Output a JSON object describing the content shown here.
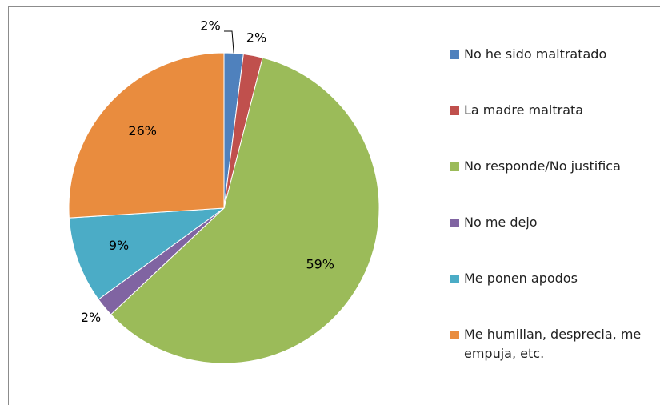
{
  "chart_data": {
    "type": "pie",
    "categories": [
      "No he sido maltratado",
      "La madre maltrata",
      "No responde/No justifica",
      "No me dejo",
      "Me ponen apodos",
      "Me humillan, desprecia, me empuja, etc."
    ],
    "values": [
      2,
      2,
      59,
      2,
      9,
      26
    ],
    "value_labels": [
      "2%",
      "2%",
      "59%",
      "2%",
      "9%",
      "26%"
    ],
    "colors": [
      "#4f81bd",
      "#c0504d",
      "#9bbb59",
      "#8064a2",
      "#4bacc6",
      "#e98c3e"
    ],
    "legend": "right"
  }
}
